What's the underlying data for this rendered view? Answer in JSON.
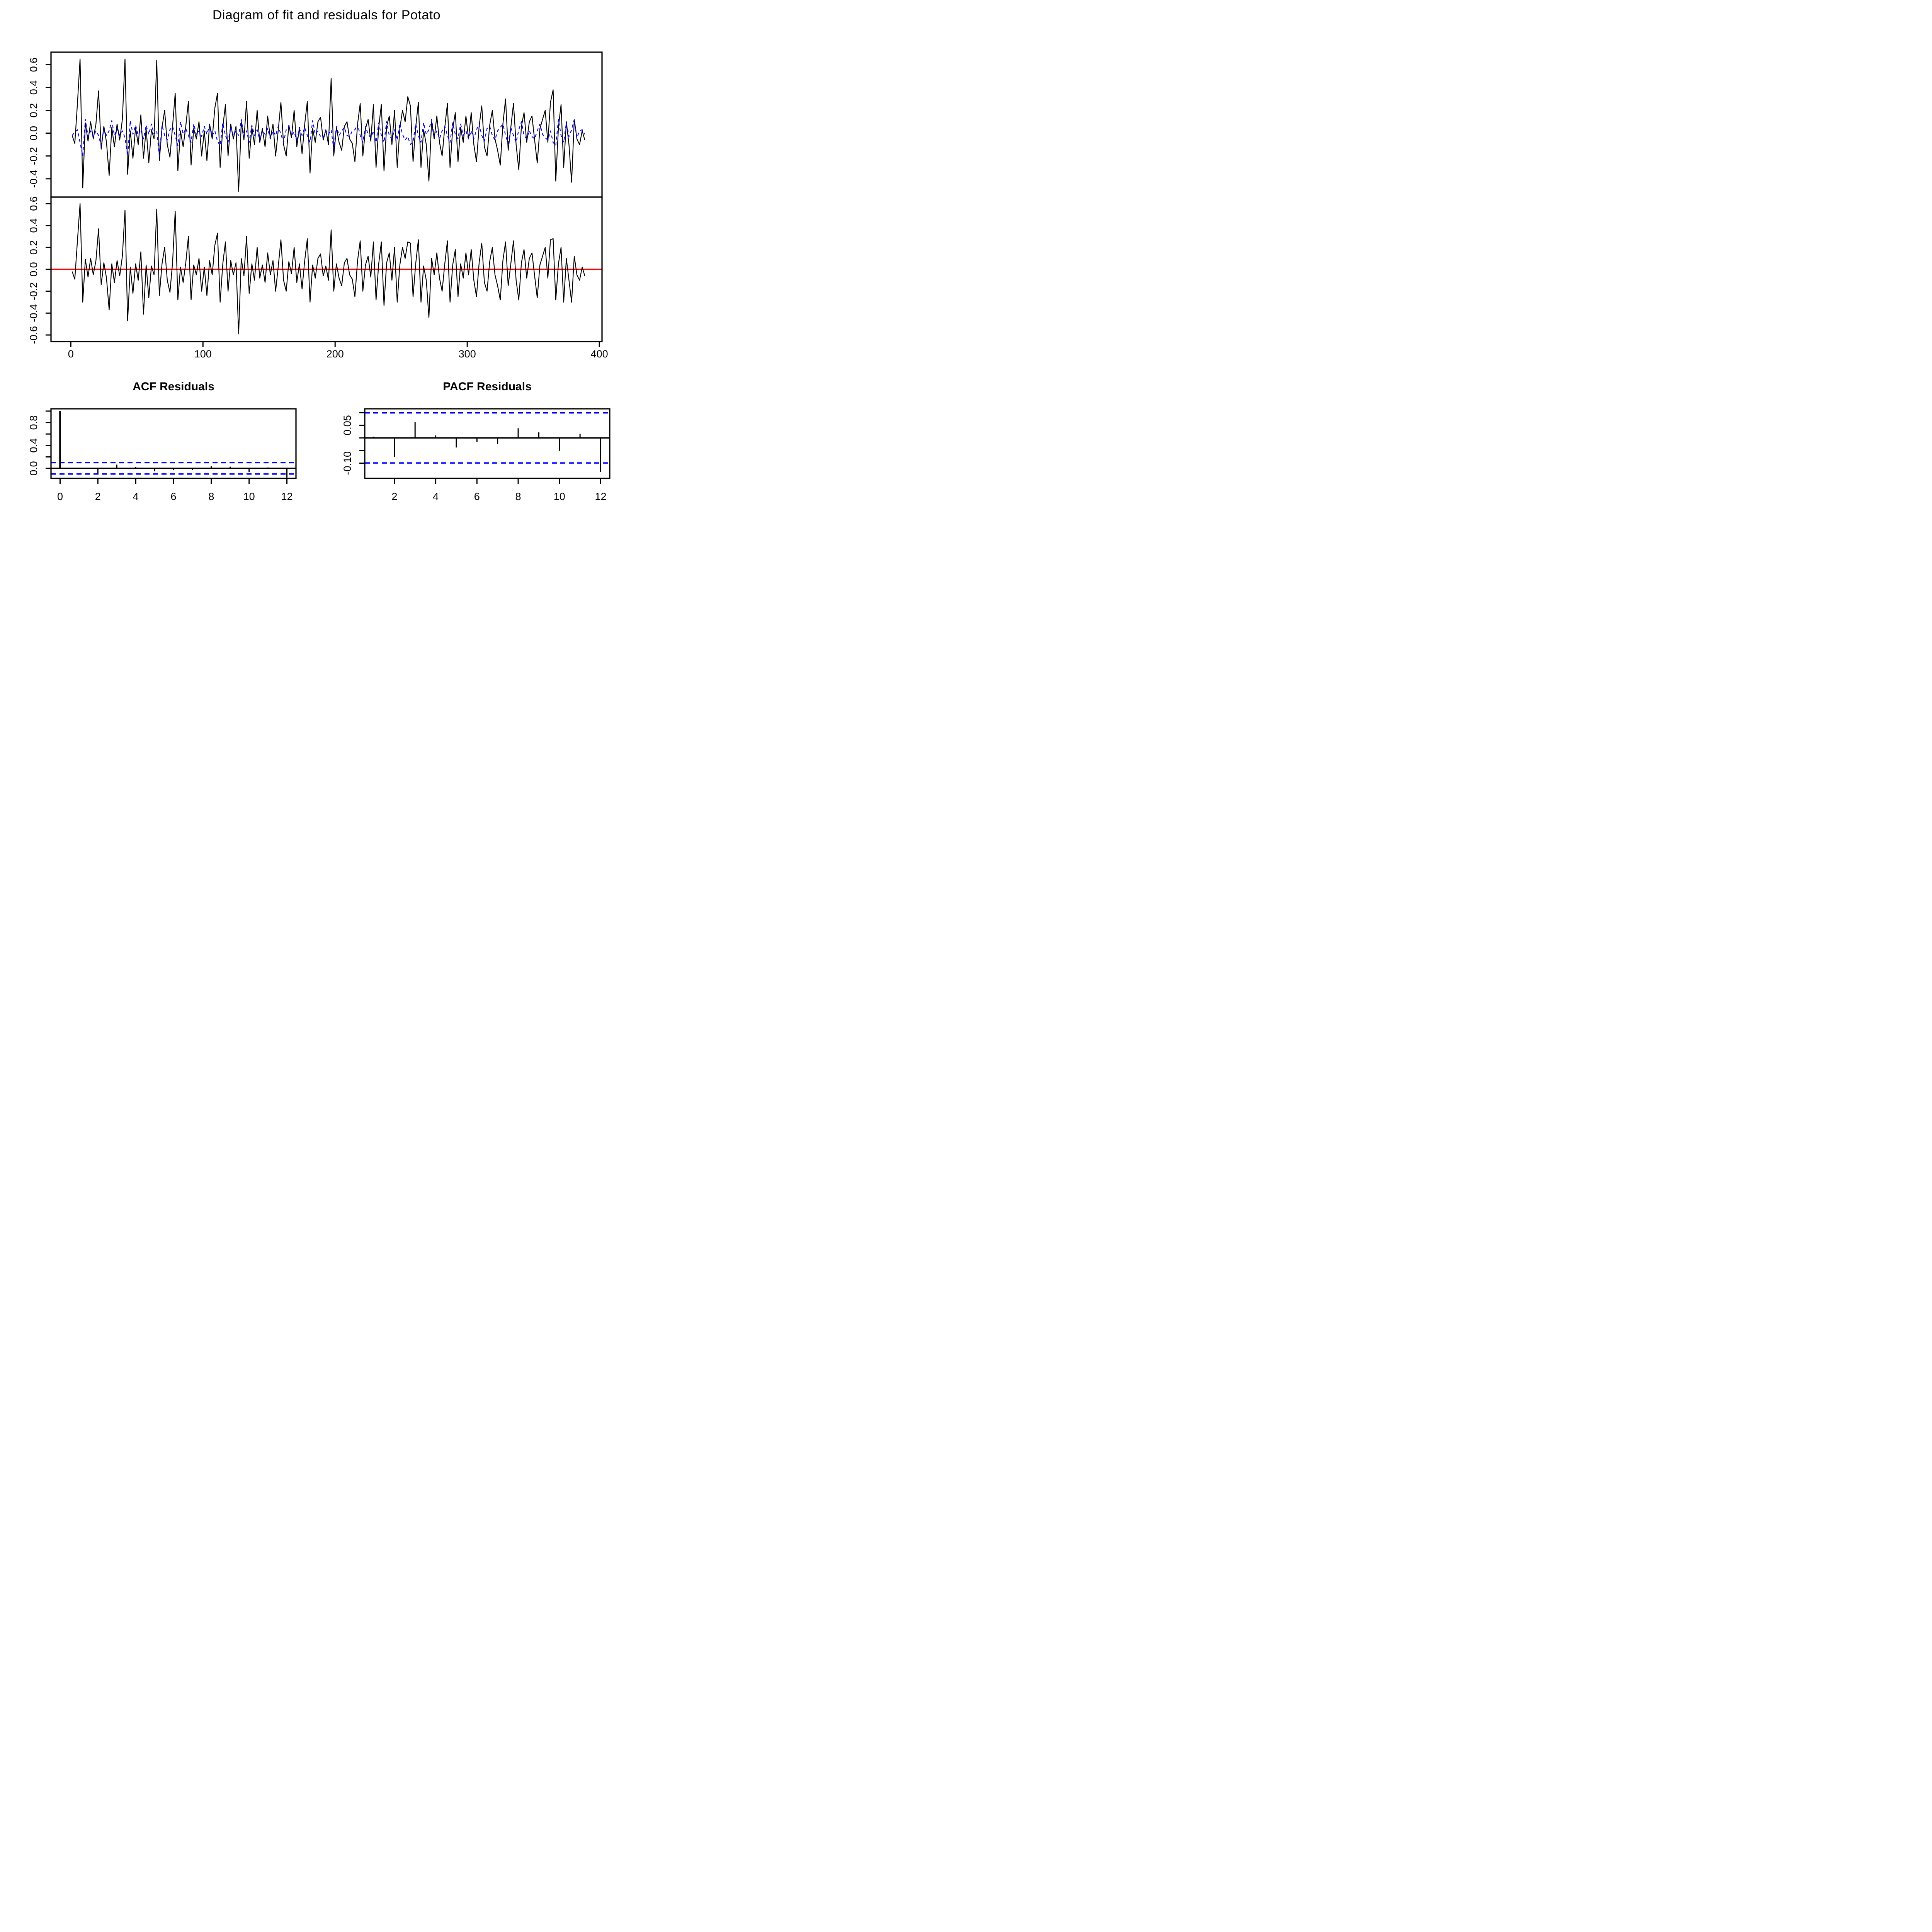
{
  "page": {
    "title": "Diagram of fit and residuals for Potato"
  },
  "colors": {
    "background": "#FFFFFF",
    "axis": "#000000",
    "actual_line": "#000000",
    "fitted_line": "#0000FF",
    "residual_line": "#000000",
    "zero_line": "#FF0000",
    "conf_band": "#0000FF"
  },
  "chart_data": [
    {
      "id": "fit",
      "type": "line",
      "title": "Diagram of fit and residuals for Potato",
      "x_start": 1,
      "x_step": 2,
      "xlim": [
        -15,
        402
      ],
      "ylim": [
        -0.56,
        0.71
      ],
      "yticks": [
        0.6,
        0.4,
        0.2,
        0.0,
        -0.2,
        -0.4
      ],
      "ytick_labels": [
        "0.6",
        "0.4",
        "0.2",
        "0.0",
        "-0.2",
        "-0.4"
      ],
      "xticks": [],
      "xtick_labels": [],
      "grid": false,
      "legend": "none",
      "series": [
        {
          "name": "actual",
          "color": "#000000",
          "line_style": "solid",
          "values": [
            -0.02,
            -0.09,
            0.26,
            0.65,
            -0.48,
            0.09,
            -0.07,
            0.1,
            -0.05,
            0.08,
            0.37,
            -0.14,
            0.06,
            -0.08,
            -0.37,
            0.05,
            -0.12,
            0.08,
            -0.06,
            0.12,
            0.65,
            -0.36,
            0.02,
            -0.22,
            0.05,
            -0.1,
            0.16,
            -0.22,
            0.04,
            -0.26,
            0.03,
            -0.05,
            0.64,
            -0.24,
            0.05,
            0.2,
            -0.1,
            -0.21,
            0.06,
            0.35,
            -0.33,
            0.02,
            -0.12,
            0.06,
            0.28,
            -0.28,
            0.04,
            -0.05,
            0.1,
            -0.2,
            0.02,
            -0.24,
            0.08,
            -0.05,
            0.22,
            0.35,
            -0.3,
            0.05,
            0.25,
            -0.2,
            0.08,
            -0.05,
            0.06,
            -0.51,
            0.1,
            -0.06,
            0.28,
            -0.22,
            0.05,
            -0.1,
            0.2,
            -0.08,
            0.04,
            -0.12,
            0.15,
            -0.05,
            0.08,
            -0.2,
            0.03,
            0.27,
            -0.1,
            -0.2,
            0.07,
            -0.04,
            0.2,
            -0.12,
            0.05,
            -0.18,
            0.08,
            0.28,
            -0.35,
            0.04,
            -0.08,
            0.1,
            0.14,
            -0.06,
            0.03,
            -0.1,
            0.48,
            -0.2,
            0.05,
            -0.08,
            -0.15,
            0.06,
            0.1,
            -0.05,
            -0.09,
            -0.25,
            0.08,
            0.26,
            -0.2,
            0.04,
            0.12,
            -0.07,
            0.25,
            -0.3,
            0.05,
            0.25,
            -0.33,
            0.06,
            0.15,
            -0.1,
            0.2,
            -0.3,
            0.04,
            0.2,
            0.1,
            0.32,
            0.24,
            -0.25,
            0.05,
            0.27,
            -0.3,
            0.03,
            -0.1,
            -0.42,
            0.1,
            -0.05,
            0.15,
            -0.08,
            -0.2,
            0.05,
            0.26,
            -0.3,
            0.04,
            0.18,
            -0.25,
            0.05,
            -0.08,
            0.15,
            -0.05,
            0.18,
            -0.1,
            -0.25,
            0.06,
            0.24,
            -0.12,
            -0.2,
            0.07,
            0.2,
            -0.05,
            -0.15,
            -0.28,
            0.08,
            0.3,
            -0.15,
            0.05,
            0.26,
            -0.1,
            -0.32,
            0.06,
            0.18,
            -0.08,
            0.1,
            0.15,
            -0.06,
            -0.26,
            0.04,
            0.12,
            0.2,
            -0.08,
            0.27,
            0.38,
            -0.42,
            0.05,
            0.25,
            -0.3,
            0.1,
            -0.1,
            -0.43,
            0.12,
            -0.05,
            -0.1,
            0.02,
            -0.06
          ]
        },
        {
          "name": "fitted",
          "color": "#0000FF",
          "line_style": "dashed",
          "values": [
            -0.02,
            0.01,
            0.03,
            -0.08,
            -0.2,
            0.12,
            -0.03,
            0.02,
            -0.03,
            0.02,
            -0.02,
            -0.11,
            0.04,
            -0.02,
            0.02,
            0.11,
            -0.02,
            0.04,
            -0.02,
            0.02,
            -0.04,
            -0.2,
            0.11,
            -0.01,
            0.07,
            -0.02,
            0.03,
            -0.05,
            0.07,
            -0.01,
            0.08,
            -0.01,
            0.02,
            -0.2,
            0.07,
            -0.02,
            -0.06,
            0.03,
            0.06,
            -0.02,
            -0.11,
            0.1,
            -0.01,
            0.04,
            -0.02,
            -0.08,
            0.08,
            -0.01,
            0.02,
            -0.03,
            0.06,
            -0.01,
            0.07,
            -0.02,
            0.02,
            -0.07,
            -0.11,
            0.09,
            -0.02,
            -0.08,
            0.06,
            -0.02,
            0.02,
            -0.02,
            0.12,
            -0.03,
            0.02,
            -0.08,
            0.07,
            -0.02,
            0.03,
            -0.06,
            0.02,
            -0.01,
            0.04,
            -0.05,
            0.02,
            -0.02,
            0.06,
            -0.01,
            -0.08,
            0.03,
            0.06,
            -0.02,
            0.01,
            -0.06,
            0.04,
            -0.02,
            0.05,
            -0.02,
            -0.08,
            0.11,
            -0.01,
            0.02,
            -0.03,
            -0.04,
            0.02,
            -0.01,
            0.03,
            -0.14,
            0.06,
            -0.02,
            0.02,
            0.05,
            -0.02,
            -0.03,
            0.02,
            0.03,
            0.08,
            -0.02,
            -0.08,
            0.06,
            -0.01,
            -0.04,
            0.02,
            -0.08,
            0.09,
            -0.02,
            -0.08,
            0.1,
            -0.02,
            -0.05,
            0.03,
            -0.06,
            0.09,
            -0.01,
            -0.06,
            -0.03,
            -0.1,
            -0.07,
            0.08,
            -0.02,
            -0.08,
            0.09,
            -0.01,
            0.03,
            0.12,
            -0.03,
            0.02,
            -0.05,
            0.02,
            0.06,
            -0.02,
            -0.08,
            0.09,
            -0.01,
            -0.05,
            0.08,
            -0.02,
            0.02,
            -0.05,
            0.02,
            -0.05,
            0.03,
            0.08,
            -0.02,
            -0.07,
            0.04,
            0.06,
            -0.02,
            -0.06,
            0.02,
            0.05,
            0.08,
            -0.02,
            -0.09,
            0.05,
            -0.02,
            -0.08,
            0.03,
            0.1,
            -0.02,
            -0.05,
            0.02,
            -0.03,
            -0.05,
            0.02,
            0.08,
            -0.01,
            -0.04,
            -0.06,
            0.02,
            -0.08,
            -0.11,
            0.12,
            -0.02,
            -0.08,
            0.09,
            -0.03,
            0.03,
            0.12,
            -0.04,
            0.02,
            0.03,
            -0.01
          ]
        }
      ]
    },
    {
      "id": "resid",
      "type": "line",
      "title": "",
      "x_start": 1,
      "x_step": 2,
      "xlim": [
        -15,
        402
      ],
      "ylim": [
        -0.66,
        0.66
      ],
      "yticks": [
        0.6,
        0.4,
        0.2,
        0.0,
        -0.2,
        -0.4,
        -0.6
      ],
      "ytick_labels": [
        "0.6",
        "0.4",
        "0.2",
        "0.0",
        "-0.2",
        "-0.4",
        "-0.6"
      ],
      "xticks": [
        0,
        100,
        200,
        300,
        400
      ],
      "xtick_labels": [
        "0",
        "100",
        "200",
        "300",
        "400"
      ],
      "xlabel_dy": 41,
      "grid": false,
      "legend": "none",
      "zero_line": {
        "y": 0,
        "color": "#FF0000"
      },
      "series": [
        {
          "name": "residuals",
          "color": "#000000",
          "line_style": "solid",
          "values": [
            -0.02,
            -0.09,
            0.26,
            0.6,
            -0.3,
            0.09,
            -0.07,
            0.1,
            -0.05,
            0.08,
            0.37,
            -0.14,
            0.06,
            -0.08,
            -0.37,
            0.05,
            -0.12,
            0.08,
            -0.06,
            0.12,
            0.54,
            -0.47,
            0.02,
            -0.22,
            0.05,
            -0.1,
            0.16,
            -0.41,
            0.04,
            -0.26,
            0.03,
            -0.05,
            0.55,
            -0.24,
            0.05,
            0.2,
            -0.1,
            -0.21,
            0.06,
            0.53,
            -0.28,
            0.02,
            -0.12,
            0.06,
            0.3,
            -0.28,
            0.04,
            -0.05,
            0.1,
            -0.2,
            0.02,
            -0.24,
            0.08,
            -0.05,
            0.22,
            0.33,
            -0.3,
            0.05,
            0.25,
            -0.2,
            0.08,
            -0.05,
            0.06,
            -0.59,
            0.1,
            -0.06,
            0.3,
            -0.22,
            0.05,
            -0.1,
            0.2,
            -0.08,
            0.04,
            -0.12,
            0.15,
            -0.05,
            0.08,
            -0.2,
            0.03,
            0.27,
            -0.1,
            -0.2,
            0.07,
            -0.04,
            0.2,
            -0.12,
            0.05,
            -0.18,
            0.08,
            0.28,
            -0.3,
            0.04,
            -0.08,
            0.1,
            0.14,
            -0.06,
            0.03,
            -0.1,
            0.36,
            -0.2,
            0.05,
            -0.08,
            -0.15,
            0.06,
            0.1,
            -0.05,
            -0.09,
            -0.25,
            0.08,
            0.26,
            -0.2,
            0.04,
            0.12,
            -0.07,
            0.25,
            -0.28,
            0.05,
            0.25,
            -0.33,
            0.06,
            0.15,
            -0.1,
            0.2,
            -0.3,
            0.04,
            0.2,
            0.1,
            0.25,
            0.24,
            -0.25,
            0.05,
            0.27,
            -0.3,
            0.03,
            -0.1,
            -0.44,
            0.1,
            -0.05,
            0.15,
            -0.08,
            -0.2,
            0.05,
            0.26,
            -0.3,
            0.04,
            0.18,
            -0.25,
            0.05,
            -0.08,
            0.15,
            -0.05,
            0.18,
            -0.1,
            -0.25,
            0.06,
            0.24,
            -0.12,
            -0.2,
            0.07,
            0.2,
            -0.05,
            -0.15,
            -0.28,
            0.08,
            0.25,
            -0.15,
            0.05,
            0.26,
            -0.1,
            -0.28,
            0.06,
            0.18,
            -0.08,
            0.1,
            0.15,
            -0.06,
            -0.26,
            0.04,
            0.12,
            0.2,
            -0.08,
            0.27,
            0.28,
            -0.28,
            0.05,
            0.2,
            -0.3,
            0.1,
            -0.1,
            -0.3,
            0.12,
            -0.05,
            -0.1,
            0.02,
            -0.06
          ]
        }
      ]
    },
    {
      "id": "acf",
      "type": "bar",
      "title": "ACF Residuals",
      "lag_start": 0,
      "values": [
        1.0,
        0.01,
        -0.085,
        0.065,
        0.021,
        -0.051,
        -0.029,
        -0.03,
        0.038,
        0.03,
        -0.061,
        0.015,
        -0.162
      ],
      "conf_level": 0.099,
      "xlim": [
        -0.48,
        12.48
      ],
      "ylim": [
        -0.175,
        1.04
      ],
      "yticks": [
        1.0,
        0.8,
        0.6,
        0.4,
        0.2,
        0.0
      ],
      "ytick_labels": [
        "",
        "0.8",
        "",
        "0.4",
        "",
        "0.0"
      ],
      "xticks": [
        0,
        2,
        4,
        6,
        8,
        10,
        12
      ],
      "xtick_labels": [
        "0",
        "2",
        "4",
        "6",
        "8",
        "10",
        "12"
      ],
      "xlabel_dy": 56,
      "grid": false
    },
    {
      "id": "pacf",
      "type": "bar",
      "title": "PACF Residuals",
      "lag_start": 1,
      "values": [
        0.005,
        -0.075,
        0.062,
        0.01,
        -0.038,
        -0.016,
        -0.025,
        0.038,
        0.022,
        -0.051,
        0.016,
        -0.134
      ],
      "conf_level": 0.099,
      "xlim": [
        0.56,
        12.44
      ],
      "ylim": [
        -0.16,
        0.115
      ],
      "yticks": [
        0.1,
        0.05,
        0.0,
        -0.05,
        -0.1
      ],
      "ytick_labels": [
        "",
        "0.05",
        "",
        "",
        "-0.10"
      ],
      "xticks": [
        2,
        4,
        6,
        8,
        10,
        12
      ],
      "xtick_labels": [
        "2",
        "4",
        "6",
        "8",
        "10",
        "12"
      ],
      "xlabel_dy": 56,
      "grid": false
    }
  ]
}
